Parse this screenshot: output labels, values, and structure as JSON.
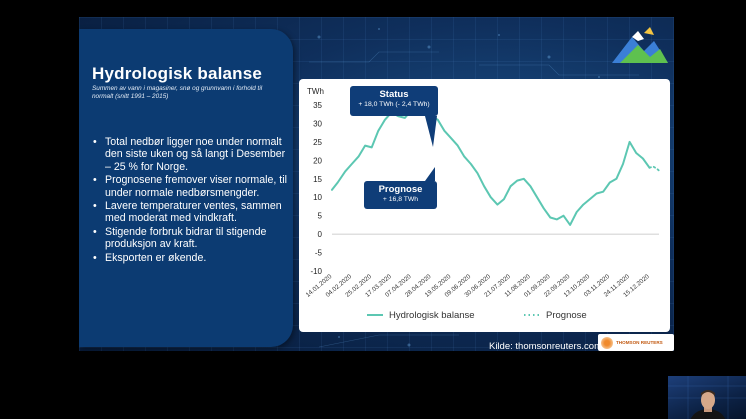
{
  "slide": {
    "title": "Hydrologisk balanse",
    "subtitle": "Summen av vann i magasiner, snø og grunnvann i forhold til normalt (snitt 1991 – 2015)",
    "bullets": [
      "Total nedbør ligger noe under normalt den siste uken og så langt i Desember – 25 % for Norge.",
      "Prognosene fremover viser normale, til under normale nedbørsmengder.",
      "Lavere temperaturer ventes, sammen med moderat med vindkraft.",
      "Stigende forbruk bidrar til stigende produksjon av kraft.",
      "Eksporten er økende."
    ],
    "source": "Kilde: thomsonreuters.com",
    "reuters_logo_text": "THOMSON REUTERS",
    "status_callout": {
      "title": "Status",
      "value": "+ 18,0 TWh (- 2,4 TWh)"
    },
    "prognose_callout": {
      "title": "Prognose",
      "value": "+ 16,8 TWh"
    }
  },
  "colors": {
    "series": "#5cc7b2",
    "panel": "#0c3b72",
    "callout": "#0f3d78"
  },
  "chart_data": {
    "type": "line",
    "ylabel": "TWh",
    "ylim": [
      -10,
      35
    ],
    "yticks": [
      -10,
      -5,
      0,
      5,
      10,
      15,
      20,
      25,
      30,
      35
    ],
    "x_tick_labels": [
      "14.01.2020",
      "04.02.2020",
      "25.02.2020",
      "17.03.2020",
      "07.04.2020",
      "28.04.2020",
      "19.05.2020",
      "09.06.2020",
      "30.06.2020",
      "21.07.2020",
      "11.08.2020",
      "01.09.2020",
      "22.09.2020",
      "13.10.2020",
      "03.11.2020",
      "24.11.2020",
      "15.12.2020"
    ],
    "grid": false,
    "legend_position": "bottom",
    "series": [
      {
        "name": "Hydrologisk balanse",
        "style": "solid",
        "points": [
          [
            "14.01.2020",
            12
          ],
          [
            "20.01.2020",
            14
          ],
          [
            "28.01.2020",
            17
          ],
          [
            "04.02.2020",
            19
          ],
          [
            "11.02.2020",
            21
          ],
          [
            "18.02.2020",
            24
          ],
          [
            "25.02.2020",
            23.5
          ],
          [
            "03.03.2020",
            28
          ],
          [
            "10.03.2020",
            31
          ],
          [
            "17.03.2020",
            33
          ],
          [
            "24.03.2020",
            32
          ],
          [
            "31.03.2020",
            31.5
          ],
          [
            "07.04.2020",
            33.5
          ],
          [
            "14.04.2020",
            33
          ],
          [
            "21.04.2020",
            33.5
          ],
          [
            "28.04.2020",
            32
          ],
          [
            "05.05.2020",
            31
          ],
          [
            "12.05.2020",
            28
          ],
          [
            "19.05.2020",
            26
          ],
          [
            "26.05.2020",
            24
          ],
          [
            "02.06.2020",
            21
          ],
          [
            "09.06.2020",
            19
          ],
          [
            "16.06.2020",
            16.5
          ],
          [
            "23.06.2020",
            13
          ],
          [
            "30.06.2020",
            10
          ],
          [
            "07.07.2020",
            8
          ],
          [
            "14.07.2020",
            9.5
          ],
          [
            "21.07.2020",
            13
          ],
          [
            "28.07.2020",
            14.5
          ],
          [
            "04.08.2020",
            15
          ],
          [
            "11.08.2020",
            13
          ],
          [
            "18.08.2020",
            10
          ],
          [
            "25.08.2020",
            7
          ],
          [
            "01.09.2020",
            4.5
          ],
          [
            "08.09.2020",
            4
          ],
          [
            "15.09.2020",
            5
          ],
          [
            "22.09.2020",
            2.5
          ],
          [
            "29.09.2020",
            6
          ],
          [
            "06.10.2020",
            8
          ],
          [
            "13.10.2020",
            9.5
          ],
          [
            "20.10.2020",
            11
          ],
          [
            "27.10.2020",
            11.5
          ],
          [
            "03.11.2020",
            14
          ],
          [
            "10.11.2020",
            15
          ],
          [
            "17.11.2020",
            19
          ],
          [
            "24.11.2020",
            25
          ],
          [
            "01.12.2020",
            22
          ],
          [
            "08.12.2020",
            20.5
          ],
          [
            "15.12.2020",
            18
          ]
        ]
      },
      {
        "name": "Prognose",
        "style": "dotted",
        "points": [
          [
            "15.12.2020",
            18
          ],
          [
            "19.12.2020",
            18.3
          ],
          [
            "23.12.2020",
            17.7
          ],
          [
            "27.12.2020",
            16.8
          ]
        ]
      }
    ]
  }
}
